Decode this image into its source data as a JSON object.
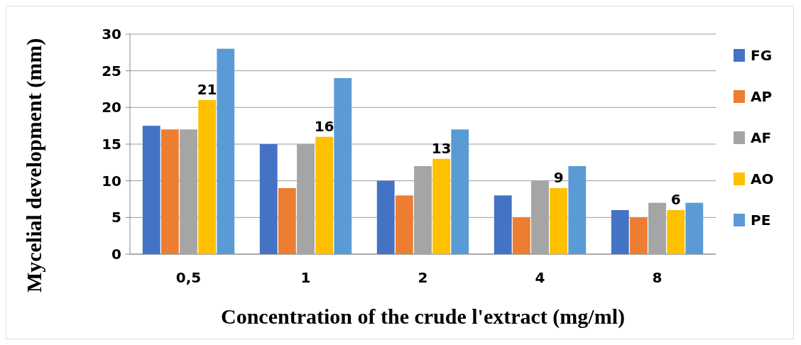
{
  "chart_data": {
    "type": "bar",
    "xlabel": "Concentration of the crude l'extract   (mg/ml)",
    "ylabel": "Mycelial development  (mm)",
    "categories": [
      "0,5",
      "1",
      "2",
      "4",
      "8"
    ],
    "series": [
      {
        "name": "FG",
        "color": "#4472c4",
        "values": [
          17.5,
          15,
          10,
          8,
          6
        ]
      },
      {
        "name": "AP",
        "color": "#ed7d31",
        "values": [
          17,
          9,
          8,
          5,
          5
        ]
      },
      {
        "name": "AF",
        "color": "#a5a5a5",
        "values": [
          17,
          15,
          12,
          10,
          7
        ]
      },
      {
        "name": "AO",
        "color": "#ffc000",
        "values": [
          21,
          16,
          13,
          9,
          6
        ],
        "value_labels": [
          "21",
          "16",
          "13",
          "9",
          "6"
        ]
      },
      {
        "name": "PE",
        "color": "#5b9bd5",
        "values": [
          28,
          24,
          17,
          12,
          7
        ]
      }
    ],
    "ylim": [
      0,
      30
    ],
    "yticks": [
      0,
      5,
      10,
      15,
      20,
      25,
      30
    ],
    "grid": "y",
    "legend": "right"
  }
}
